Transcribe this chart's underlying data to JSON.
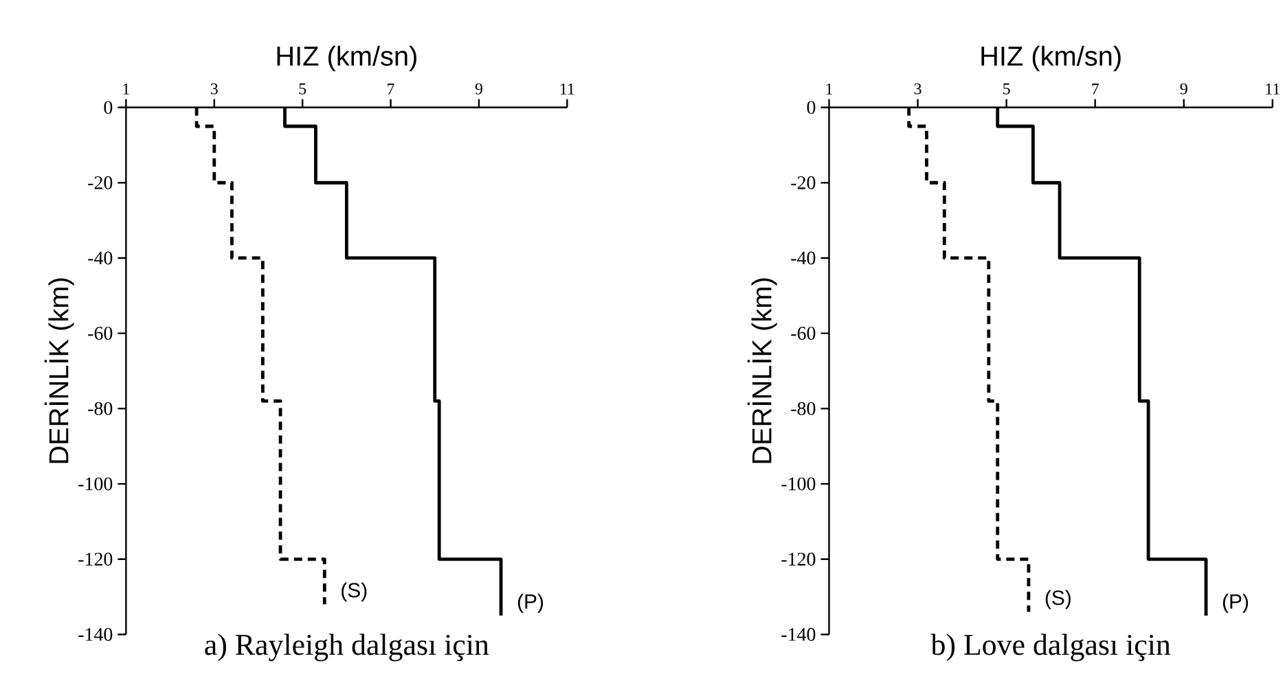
{
  "chart_data": [
    {
      "type": "line",
      "title": "a) Rayleigh dalgası için",
      "xlabel": "HIZ (km/sn)",
      "ylabel": "DERİNLİK (km)",
      "xlim": [
        1,
        11
      ],
      "ylim": [
        -140,
        0
      ],
      "xticks": [
        1,
        3,
        5,
        7,
        9,
        11
      ],
      "yticks": [
        0,
        -20,
        -40,
        -60,
        -80,
        -100,
        -120,
        -140
      ],
      "series": [
        {
          "name": "(S)",
          "color": "#000000",
          "line_style": "dashed",
          "x": [
            2.6,
            2.6,
            3.0,
            3.0,
            3.4,
            3.4,
            4.1,
            4.1,
            4.5,
            4.5,
            5.5,
            5.5
          ],
          "values": [
            0,
            -5,
            -5,
            -20,
            -20,
            -40,
            -40,
            -78,
            -78,
            -120,
            -120,
            -132
          ]
        },
        {
          "name": "(P)",
          "color": "#000000",
          "line_style": "solid",
          "x": [
            4.6,
            4.6,
            5.3,
            5.3,
            6.0,
            6.0,
            8.0,
            8.0,
            8.1,
            8.1,
            9.5,
            9.5
          ],
          "values": [
            0,
            -5,
            -5,
            -20,
            -20,
            -40,
            -40,
            -78,
            -78,
            -120,
            -120,
            -135
          ]
        }
      ]
    },
    {
      "type": "line",
      "title": "b) Love dalgası için",
      "xlabel": "HIZ (km/sn)",
      "ylabel": "DERİNLİK (km)",
      "xlim": [
        1,
        11
      ],
      "ylim": [
        -140,
        0
      ],
      "xticks": [
        1,
        3,
        5,
        7,
        9,
        11
      ],
      "yticks": [
        0,
        -20,
        -40,
        -60,
        -80,
        -100,
        -120,
        -140
      ],
      "series": [
        {
          "name": "(S)",
          "color": "#000000",
          "line_style": "dashed",
          "x": [
            2.8,
            2.8,
            3.2,
            3.2,
            3.6,
            3.6,
            4.6,
            4.6,
            4.8,
            4.8,
            5.5,
            5.5
          ],
          "values": [
            0,
            -5,
            -5,
            -20,
            -20,
            -40,
            -40,
            -78,
            -78,
            -120,
            -120,
            -134
          ]
        },
        {
          "name": "(P)",
          "color": "#000000",
          "line_style": "solid",
          "x": [
            4.8,
            4.8,
            5.6,
            5.6,
            6.2,
            6.2,
            8.0,
            8.0,
            8.2,
            8.2,
            9.5,
            9.5
          ],
          "values": [
            0,
            -5,
            -5,
            -20,
            -20,
            -40,
            -40,
            -78,
            -78,
            -120,
            -120,
            -135
          ]
        }
      ]
    }
  ]
}
